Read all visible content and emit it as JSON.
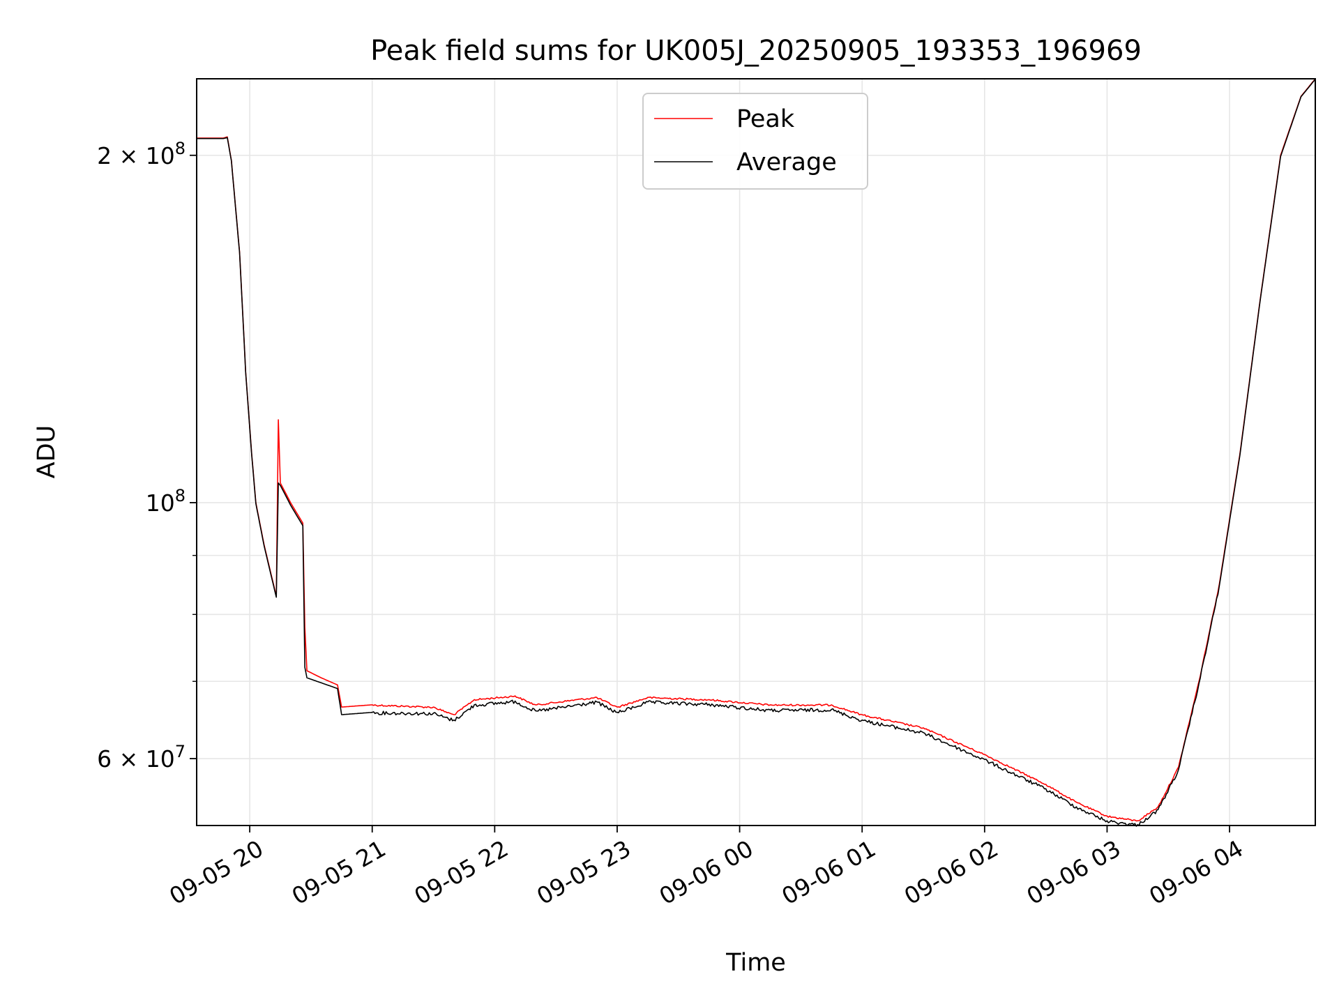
{
  "chart_data": {
    "type": "line",
    "title": "Peak field sums for UK005J_20250905_193353_196969",
    "xlabel": "Time",
    "ylabel": "ADU",
    "yscale": "log",
    "xlim": [
      "2025-09-05 19:34",
      "2025-09-06 04:42"
    ],
    "ylim": [
      52500000,
      233000000
    ],
    "grid": true,
    "legend_position": "upper center",
    "x_ticks": [
      "09-05 20",
      "09-05 21",
      "09-05 22",
      "09-05 23",
      "09-06 00",
      "09-06 01",
      "09-06 02",
      "09-06 03",
      "09-06 04"
    ],
    "y_ticks": [
      {
        "value": 60000000,
        "label_base": "6",
        "label_mult": "×",
        "label_pow": "10",
        "label_exp": "7"
      },
      {
        "value": 100000000,
        "label_base": "",
        "label_mult": "",
        "label_pow": "10",
        "label_exp": "8"
      },
      {
        "value": 200000000,
        "label_base": "2",
        "label_mult": "×",
        "label_pow": "10",
        "label_exp": "8"
      }
    ],
    "series": [
      {
        "name": "Peak",
        "color": "#ff0000",
        "points": [
          [
            "2025-09-05 19:34",
            207000000
          ],
          [
            "2025-09-05 19:47",
            207000000
          ],
          [
            "2025-09-05 19:49",
            207500000
          ],
          [
            "2025-09-05 19:51",
            198000000
          ],
          [
            "2025-09-05 19:55",
            165000000
          ],
          [
            "2025-09-05 19:58",
            130000000
          ],
          [
            "2025-09-05 20:01",
            110000000
          ],
          [
            "2025-09-05 20:03",
            100000000
          ],
          [
            "2025-09-05 20:07",
            92000000
          ],
          [
            "2025-09-05 20:13",
            83000000
          ],
          [
            "2025-09-05 20:14",
            118000000
          ],
          [
            "2025-09-05 20:15",
            104000000
          ],
          [
            "2025-09-05 20:20",
            100000000
          ],
          [
            "2025-09-05 20:26",
            96000000
          ],
          [
            "2025-09-05 20:27",
            78000000
          ],
          [
            "2025-09-05 20:28",
            71500000
          ],
          [
            "2025-09-05 20:35",
            70500000
          ],
          [
            "2025-09-05 20:43",
            69500000
          ],
          [
            "2025-09-05 20:45",
            66500000
          ],
          [
            "2025-09-05 21:00",
            66800000
          ],
          [
            "2025-09-05 21:30",
            66500000
          ],
          [
            "2025-09-05 21:40",
            65500000
          ],
          [
            "2025-09-05 21:50",
            67500000
          ],
          [
            "2025-09-05 22:10",
            68000000
          ],
          [
            "2025-09-05 22:20",
            66800000
          ],
          [
            "2025-09-05 22:40",
            67500000
          ],
          [
            "2025-09-05 22:50",
            67800000
          ],
          [
            "2025-09-05 23:00",
            66500000
          ],
          [
            "2025-09-05 23:15",
            67800000
          ],
          [
            "2025-09-05 23:45",
            67500000
          ],
          [
            "2025-09-06 00:15",
            66800000
          ],
          [
            "2025-09-06 00:45",
            66800000
          ],
          [
            "2025-09-06 01:00",
            65500000
          ],
          [
            "2025-09-06 01:30",
            63800000
          ],
          [
            "2025-09-06 02:00",
            60500000
          ],
          [
            "2025-09-06 02:30",
            57000000
          ],
          [
            "2025-09-06 02:45",
            55000000
          ],
          [
            "2025-09-06 03:00",
            53500000
          ],
          [
            "2025-09-06 03:15",
            53000000
          ],
          [
            "2025-09-06 03:25",
            54500000
          ],
          [
            "2025-09-06 03:35",
            59000000
          ],
          [
            "2025-09-06 03:45",
            70000000
          ],
          [
            "2025-09-06 03:55",
            85000000
          ],
          [
            "2025-09-06 04:05",
            110000000
          ],
          [
            "2025-09-06 04:15",
            150000000
          ],
          [
            "2025-09-06 04:25",
            200000000
          ],
          [
            "2025-09-06 04:35",
            225000000
          ],
          [
            "2025-09-06 04:42",
            233000000
          ]
        ]
      },
      {
        "name": "Average",
        "color": "#000000",
        "points": [
          [
            "2025-09-05 19:34",
            206800000
          ],
          [
            "2025-09-05 19:47",
            206800000
          ],
          [
            "2025-09-05 19:49",
            207200000
          ],
          [
            "2025-09-05 19:51",
            197800000
          ],
          [
            "2025-09-05 19:55",
            164800000
          ],
          [
            "2025-09-05 19:58",
            129800000
          ],
          [
            "2025-09-05 20:01",
            109800000
          ],
          [
            "2025-09-05 20:03",
            99800000
          ],
          [
            "2025-09-05 20:07",
            91800000
          ],
          [
            "2025-09-05 20:13",
            82800000
          ],
          [
            "2025-09-05 20:14",
            104000000
          ],
          [
            "2025-09-05 20:15",
            103500000
          ],
          [
            "2025-09-05 20:20",
            99500000
          ],
          [
            "2025-09-05 20:26",
            95500000
          ],
          [
            "2025-09-05 20:27",
            72000000
          ],
          [
            "2025-09-05 20:28",
            70500000
          ],
          [
            "2025-09-05 20:35",
            69800000
          ],
          [
            "2025-09-05 20:43",
            69000000
          ],
          [
            "2025-09-05 20:45",
            65500000
          ],
          [
            "2025-09-05 21:00",
            65800000
          ],
          [
            "2025-09-05 21:30",
            65700000
          ],
          [
            "2025-09-05 21:40",
            64800000
          ],
          [
            "2025-09-05 21:50",
            66800000
          ],
          [
            "2025-09-05 22:10",
            67300000
          ],
          [
            "2025-09-05 22:20",
            66000000
          ],
          [
            "2025-09-05 22:40",
            66800000
          ],
          [
            "2025-09-05 22:50",
            67200000
          ],
          [
            "2025-09-05 23:00",
            65800000
          ],
          [
            "2025-09-05 23:15",
            67200000
          ],
          [
            "2025-09-05 23:45",
            66900000
          ],
          [
            "2025-09-06 00:15",
            66100000
          ],
          [
            "2025-09-06 00:45",
            66200000
          ],
          [
            "2025-09-06 01:00",
            64800000
          ],
          [
            "2025-09-06 01:30",
            63200000
          ],
          [
            "2025-09-06 02:00",
            59900000
          ],
          [
            "2025-09-06 02:30",
            56500000
          ],
          [
            "2025-09-06 02:45",
            54500000
          ],
          [
            "2025-09-06 03:00",
            53000000
          ],
          [
            "2025-09-06 03:15",
            52600000
          ],
          [
            "2025-09-06 03:25",
            54200000
          ],
          [
            "2025-09-06 03:35",
            58700000
          ],
          [
            "2025-09-06 03:45",
            69700000
          ],
          [
            "2025-09-06 03:55",
            84700000
          ],
          [
            "2025-09-06 04:05",
            109700000
          ],
          [
            "2025-09-06 04:15",
            149700000
          ],
          [
            "2025-09-06 04:25",
            199500000
          ],
          [
            "2025-09-06 04:35",
            224800000
          ],
          [
            "2025-09-06 04:42",
            232800000
          ]
        ]
      }
    ]
  }
}
